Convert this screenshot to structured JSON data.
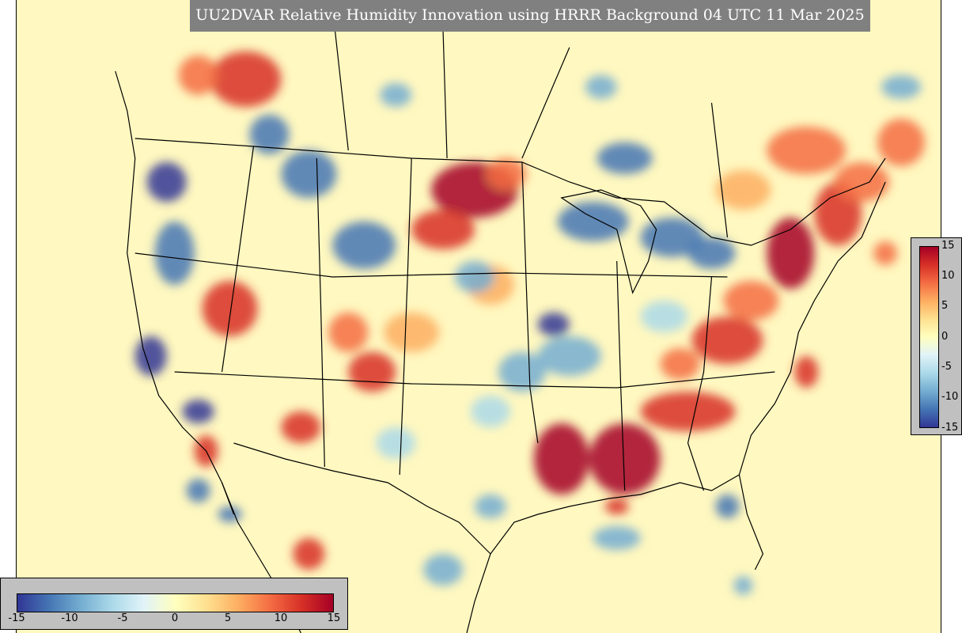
{
  "title": "UU2DVAR Relative Humidity Innovation using HRRR Background 04 UTC 11 Mar 2025",
  "colorbar": {
    "min": -15,
    "max": 15,
    "ticks": [
      "15",
      "10",
      "5",
      "0",
      "-5",
      "-10",
      "-15"
    ],
    "horizontal_ticks": [
      "-15",
      "-10",
      "-5",
      "0",
      "5",
      "10",
      "15"
    ],
    "colors": [
      "#313695",
      "#4575b4",
      "#74add1",
      "#abd9e9",
      "#e0f3f8",
      "#ffffbf",
      "#fee090",
      "#fdae61",
      "#f46d43",
      "#d73027",
      "#a50026"
    ]
  },
  "map": {
    "background_color": "#fff8c0",
    "boundary_color": "#000000"
  }
}
